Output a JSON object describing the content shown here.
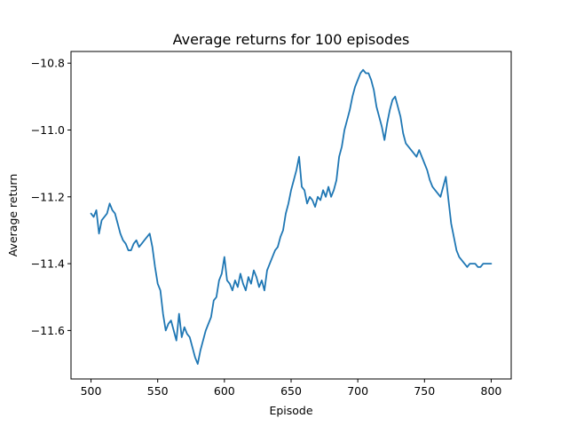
{
  "chart_data": {
    "type": "line",
    "title": "Average returns for 100 episodes",
    "xlabel": "Episode",
    "ylabel": "Average return",
    "xlim": [
      485,
      815
    ],
    "ylim": [
      -11.745,
      -10.765
    ],
    "xticks": [
      500,
      550,
      600,
      650,
      700,
      750,
      800
    ],
    "yticks": [
      -11.6,
      -11.4,
      -11.2,
      -11.0,
      -10.8
    ],
    "ytick_labels": [
      "−11.6",
      "−11.4",
      "−11.2",
      "−11.0",
      "−10.8"
    ],
    "grid": false,
    "line_color": "#1f77b4",
    "series": [
      {
        "x": [
          500,
          502,
          504,
          506,
          508,
          510,
          512,
          514,
          516,
          518,
          520,
          522,
          524,
          526,
          528,
          530,
          532,
          534,
          536,
          538,
          540,
          542,
          544,
          546,
          548,
          550,
          552,
          554,
          556,
          558,
          560,
          562,
          564,
          566,
          568,
          570,
          572,
          574,
          576,
          578,
          580,
          582,
          584,
          586,
          588,
          590,
          592,
          594,
          596,
          598,
          600,
          602,
          604,
          606,
          608,
          610,
          612,
          614,
          616,
          618,
          620,
          622,
          624,
          626,
          628,
          630,
          632,
          634,
          636,
          638,
          640,
          642,
          644,
          646,
          648,
          650,
          652,
          654,
          656,
          658,
          660,
          662,
          664,
          666,
          668,
          670,
          672,
          674,
          676,
          678,
          680,
          682,
          684,
          686,
          688,
          690,
          692,
          694,
          696,
          698,
          700,
          702,
          704,
          706,
          708,
          710,
          712,
          714,
          716,
          718,
          720,
          722,
          724,
          726,
          728,
          730,
          732,
          734,
          736,
          738,
          740,
          742,
          744,
          746,
          748,
          750,
          752,
          754,
          756,
          758,
          760,
          762,
          764,
          766,
          768,
          770,
          772,
          774,
          776,
          778,
          780,
          782,
          784,
          786,
          788,
          790,
          792,
          794,
          796,
          798,
          800
        ],
        "y": [
          -11.25,
          -11.26,
          -11.24,
          -11.31,
          -11.27,
          -11.26,
          -11.25,
          -11.22,
          -11.24,
          -11.25,
          -11.28,
          -11.31,
          -11.33,
          -11.34,
          -11.36,
          -11.36,
          -11.34,
          -11.33,
          -11.35,
          -11.34,
          -11.33,
          -11.32,
          -11.31,
          -11.35,
          -11.41,
          -11.46,
          -11.48,
          -11.55,
          -11.6,
          -11.58,
          -11.57,
          -11.6,
          -11.63,
          -11.55,
          -11.62,
          -11.59,
          -11.61,
          -11.62,
          -11.65,
          -11.68,
          -11.7,
          -11.66,
          -11.63,
          -11.6,
          -11.58,
          -11.56,
          -11.51,
          -11.5,
          -11.45,
          -11.43,
          -11.38,
          -11.45,
          -11.46,
          -11.48,
          -11.45,
          -11.47,
          -11.43,
          -11.46,
          -11.48,
          -11.44,
          -11.46,
          -11.42,
          -11.44,
          -11.47,
          -11.45,
          -11.48,
          -11.42,
          -11.4,
          -11.38,
          -11.36,
          -11.35,
          -11.32,
          -11.3,
          -11.25,
          -11.22,
          -11.18,
          -11.15,
          -11.12,
          -11.08,
          -11.17,
          -11.18,
          -11.22,
          -11.2,
          -11.21,
          -11.23,
          -11.2,
          -11.21,
          -11.18,
          -11.2,
          -11.17,
          -11.2,
          -11.18,
          -11.15,
          -11.08,
          -11.05,
          -11.0,
          -10.97,
          -10.94,
          -10.9,
          -10.87,
          -10.85,
          -10.83,
          -10.82,
          -10.83,
          -10.83,
          -10.85,
          -10.88,
          -10.93,
          -10.96,
          -10.99,
          -11.03,
          -10.98,
          -10.94,
          -10.91,
          -10.9,
          -10.93,
          -10.96,
          -11.01,
          -11.04,
          -11.05,
          -11.06,
          -11.07,
          -11.08,
          -11.06,
          -11.08,
          -11.1,
          -11.12,
          -11.15,
          -11.17,
          -11.18,
          -11.19,
          -11.2,
          -11.17,
          -11.14,
          -11.21,
          -11.28,
          -11.32,
          -11.36,
          -11.38,
          -11.39,
          -11.4,
          -11.41,
          -11.4,
          -11.4,
          -11.4,
          -11.41,
          -11.41,
          -11.4,
          -11.4,
          -11.4,
          -11.4
        ]
      }
    ]
  }
}
